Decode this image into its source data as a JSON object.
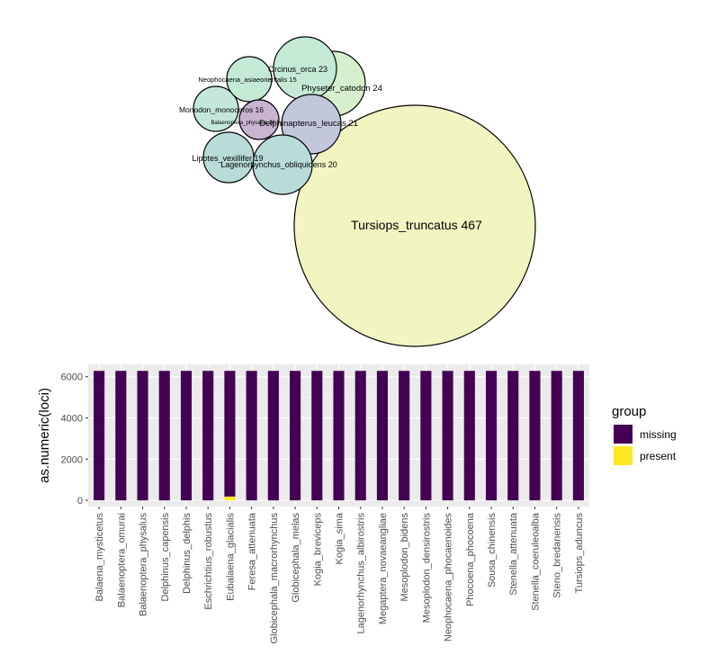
{
  "bubble_chart": {
    "type": "packed-bubble",
    "bubbles": [
      {
        "label": "Tursiops_truncatus 467",
        "value": 467,
        "color": "#f2f5c2"
      },
      {
        "label": "Physeter_catodon 24",
        "value": 24,
        "color": "#d6efcc"
      },
      {
        "label": "Orcinus_orca 23",
        "value": 23,
        "color": "#c4ead6"
      },
      {
        "label": "Delphinapterus_leucas 21",
        "value": 21,
        "color": "#c2c7dc"
      },
      {
        "label": "Lagenorhynchus_obliquidens 20",
        "value": 20,
        "color": "#b9dcd9"
      },
      {
        "label": "Lipotes_vexillifer 19",
        "value": 19,
        "color": "#b9dcd9"
      },
      {
        "label": "Monodon_monoceros 16",
        "value": 16,
        "color": "#c4e6dc"
      },
      {
        "label": "Neophocaena_asiaeorientalis 15",
        "value": 15,
        "color": "#c4ead6"
      },
      {
        "label": "Balaenoptera_physalus 10",
        "value": 10,
        "color": "#c9b3d1"
      }
    ]
  },
  "chart_data": {
    "type": "bar",
    "stacked": true,
    "categories": [
      "Balaena_mysticetus",
      "Balaenoptera_omurai",
      "Balaenoptera_physalus",
      "Delphinus_capensis",
      "Delphinus_delphis",
      "Eschrichtius_robustus",
      "Eubalaena_glacialis",
      "Feresa_attenuata",
      "Globicephala_macrorhynchus",
      "Globicephala_melas",
      "Kogia_breviceps",
      "Kogia_sima",
      "Lagenorhynchus_albirostris",
      "Megaptera_novaeangliae",
      "Mesoplodon_bidens",
      "Mesoplodon_densirostris",
      "Neophocaena_phocaenoides",
      "Phocoena_phocoena",
      "Sousa_chinensis",
      "Stenella_attenuata",
      "Stenella_coeruleoalba",
      "Steno_bredanensis",
      "Tursiops_aduncus"
    ],
    "series": [
      {
        "name": "missing",
        "color": "#440154",
        "values": [
          6280,
          6285,
          6285,
          6285,
          6285,
          6285,
          6100,
          6285,
          6285,
          6285,
          6285,
          6285,
          6285,
          6285,
          6285,
          6285,
          6285,
          6285,
          6285,
          6285,
          6285,
          6285,
          6285
        ]
      },
      {
        "name": "present",
        "color": "#fde725",
        "values": [
          5,
          0,
          0,
          0,
          0,
          0,
          185,
          0,
          0,
          0,
          0,
          0,
          0,
          0,
          0,
          0,
          0,
          0,
          0,
          0,
          0,
          0,
          0
        ]
      }
    ],
    "ylabel": "as.numeric(loci)",
    "xlabel": "",
    "yticks": [
      0,
      2000,
      4000,
      6000
    ],
    "ylim": [
      -300,
      6600
    ],
    "grid": true,
    "legend": {
      "title": "group",
      "placement": "right"
    }
  }
}
